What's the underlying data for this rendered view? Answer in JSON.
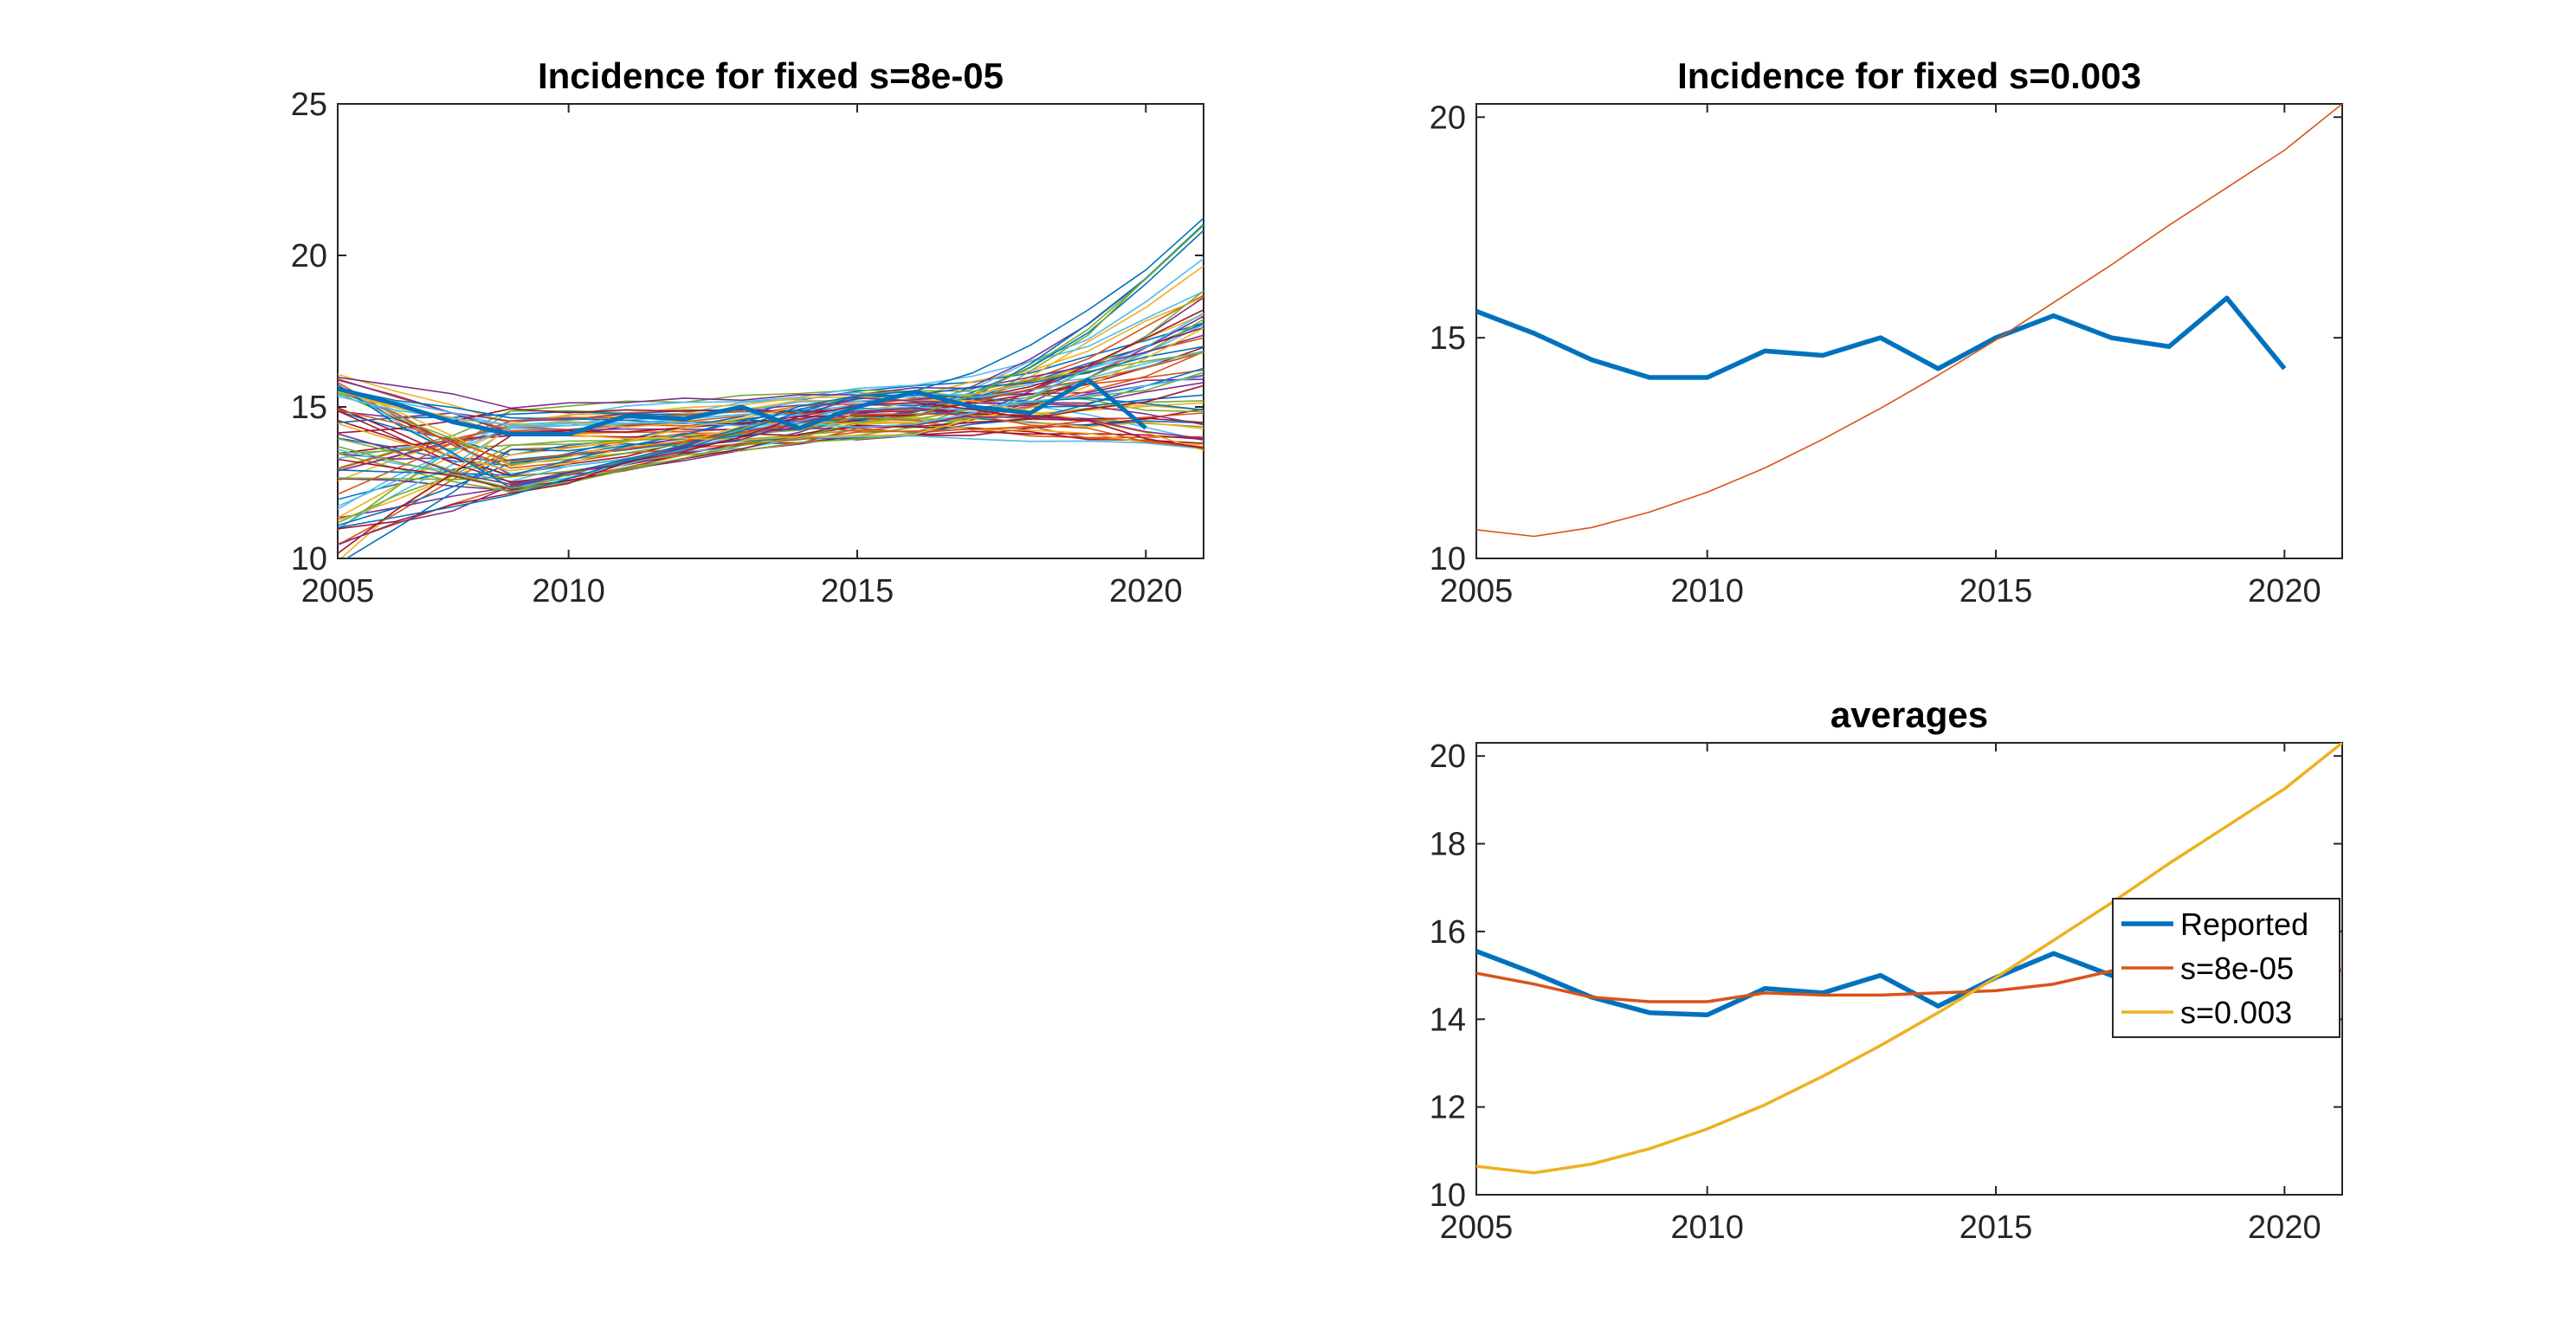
{
  "chart_data": [
    {
      "type": "line",
      "title": "Incidence for fixed s=8e-05",
      "xlabel": "",
      "ylabel": "",
      "xlim": [
        2006,
        2021
      ],
      "ylim": [
        10,
        25
      ],
      "xticks": [
        "2005",
        "2010",
        "2015",
        "2020"
      ],
      "yticks": [
        "10",
        "15",
        "20",
        "25"
      ],
      "grid": false,
      "note_series": "ensemble of ~60 thin simulation runs in default MATLAB colors plus thick blue reported series",
      "reported": {
        "x": [
          2006,
          2007,
          2008,
          2009,
          2010,
          2011,
          2012,
          2013,
          2014,
          2015,
          2016,
          2017,
          2018,
          2019,
          2020
        ],
        "values": [
          15.6,
          15.1,
          14.5,
          14.1,
          14.1,
          14.7,
          14.6,
          15.0,
          14.3,
          15.0,
          15.5,
          15.0,
          14.8,
          15.9,
          14.3
        ]
      },
      "ensemble_x": [
        2006,
        2007,
        2008,
        2009,
        2010,
        2011,
        2012,
        2013,
        2014,
        2015,
        2016,
        2017,
        2018,
        2019,
        2020,
        2021
      ],
      "ensemble_summary": {
        "low_start_min": 9.8,
        "high_start_max": 16.1,
        "end_range_2021": [
          13.6,
          22.1
        ]
      }
    },
    {
      "type": "line",
      "title": "Incidence for fixed s=0.003",
      "xlabel": "",
      "ylabel": "",
      "xlim": [
        2006,
        2021
      ],
      "ylim": [
        10,
        20.3
      ],
      "xticks": [
        "2005",
        "2010",
        "2015",
        "2020"
      ],
      "yticks": [
        "10",
        "15",
        "20"
      ],
      "grid": false,
      "categories": [
        2006,
        2007,
        2008,
        2009,
        2010,
        2011,
        2012,
        2013,
        2014,
        2015,
        2016,
        2017,
        2018,
        2019,
        2020,
        2021
      ],
      "series": [
        {
          "color": "#0072BD",
          "values": [
            15.6,
            15.1,
            14.5,
            14.1,
            14.1,
            14.7,
            14.6,
            15.0,
            14.3,
            15.0,
            15.5,
            15.0,
            14.8,
            15.9,
            14.3,
            null
          ]
        },
        {
          "color": "#D95319",
          "values": [
            10.65,
            10.5,
            10.7,
            11.05,
            11.5,
            12.05,
            12.7,
            13.4,
            14.15,
            14.95,
            15.8,
            16.65,
            17.55,
            18.4,
            19.25,
            20.3
          ]
        }
      ]
    },
    {
      "type": "line",
      "title": "averages",
      "xlabel": "",
      "ylabel": "",
      "xlim": [
        2006,
        2021
      ],
      "ylim": [
        10,
        20.3
      ],
      "xticks": [
        "2005",
        "2010",
        "2015",
        "2020"
      ],
      "yticks": [
        "10",
        "12",
        "14",
        "16",
        "18",
        "20"
      ],
      "grid": false,
      "legend_position": "right",
      "categories": [
        2006,
        2007,
        2008,
        2009,
        2010,
        2011,
        2012,
        2013,
        2014,
        2015,
        2016,
        2017,
        2018,
        2019,
        2020,
        2021
      ],
      "series": [
        {
          "name": "Reported",
          "color": "#0072BD",
          "values": [
            15.55,
            15.05,
            14.5,
            14.15,
            14.1,
            14.7,
            14.6,
            15.0,
            14.3,
            14.95,
            15.5,
            15.0,
            14.85,
            15.9,
            14.35,
            null
          ]
        },
        {
          "name": "s=8e-05",
          "color": "#D95319",
          "values": [
            15.05,
            14.8,
            14.5,
            14.4,
            14.4,
            14.6,
            14.55,
            14.55,
            14.6,
            14.65,
            14.8,
            15.1,
            15.3,
            15.55,
            15.65,
            15.1
          ]
        },
        {
          "name": "s=0.003",
          "color": "#EDB120",
          "values": [
            10.65,
            10.5,
            10.7,
            11.05,
            11.5,
            12.05,
            12.7,
            13.4,
            14.15,
            14.95,
            15.8,
            16.65,
            17.55,
            18.4,
            19.25,
            20.3
          ]
        }
      ]
    }
  ]
}
